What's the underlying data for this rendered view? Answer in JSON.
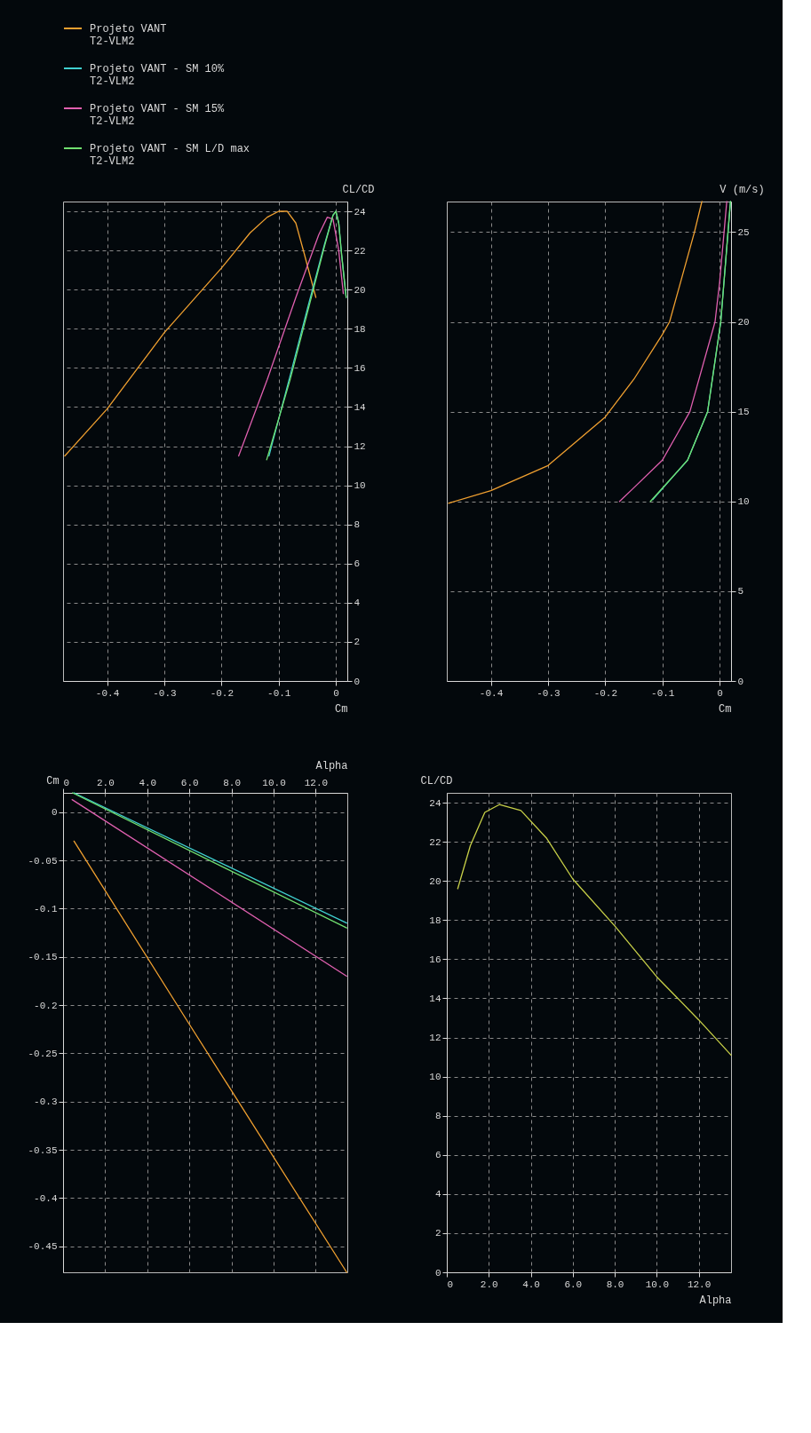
{
  "chart_data": [
    {
      "type": "line",
      "xlabel": "Cm",
      "ylabel": "CL/CD",
      "xlim": [
        -0.477,
        0.02
      ],
      "ylim": [
        0,
        24.5
      ],
      "xticks": [
        -0.4,
        -0.3,
        -0.2,
        -0.1,
        0
      ],
      "yticks": [
        0,
        2,
        4,
        6,
        8,
        10,
        12,
        14,
        16,
        18,
        20,
        22,
        24
      ],
      "grid": true,
      "legend": "top",
      "series": [
        {
          "name": "Projeto VANT\nT2-VLM2",
          "color": "#f0a030",
          "x": [
            -0.474,
            -0.4,
            -0.3,
            -0.2,
            -0.15,
            -0.12,
            -0.1,
            -0.085,
            -0.07,
            -0.055,
            -0.035
          ],
          "values": [
            11.5,
            13.9,
            17.8,
            21.1,
            22.9,
            23.7,
            24.0,
            24.0,
            23.4,
            21.8,
            19.6
          ]
        },
        {
          "name": "Projeto VANT - SM 10%\nT2-VLM2",
          "color": "#40d0d0",
          "x": [
            -0.117,
            -0.08,
            -0.05,
            -0.02,
            -0.005,
            0.0,
            0.005,
            0.01,
            0.018
          ],
          "values": [
            11.5,
            15.6,
            19.0,
            22.3,
            23.8,
            24.0,
            23.4,
            21.8,
            19.6
          ]
        },
        {
          "name": "Projeto VANT - SM 15%\nT2-VLM2",
          "color": "#e060b0",
          "x": [
            -0.17,
            -0.12,
            -0.07,
            -0.03,
            -0.015,
            -0.005,
            0.005,
            0.013
          ],
          "values": [
            11.5,
            15.4,
            19.6,
            22.8,
            23.7,
            23.6,
            22.0,
            19.8
          ]
        },
        {
          "name": "Projeto VANT - SM L/D max\nT2-VLM2",
          "color": "#70e070",
          "x": [
            -0.121,
            -0.08,
            -0.05,
            -0.02,
            -0.005,
            0.0,
            0.005,
            0.01,
            0.018
          ],
          "values": [
            11.3,
            15.4,
            18.8,
            22.2,
            23.8,
            24.0,
            23.4,
            21.8,
            19.6
          ]
        }
      ]
    },
    {
      "type": "line",
      "xlabel": "Cm",
      "ylabel": "V (m/s)",
      "xlim": [
        -0.477,
        0.02
      ],
      "ylim": [
        0,
        26.7
      ],
      "xticks": [
        -0.4,
        -0.3,
        -0.2,
        -0.1,
        0
      ],
      "yticks": [
        0,
        5,
        10,
        15,
        20,
        25
      ],
      "grid": true,
      "series": [
        {
          "color": "#f0a030",
          "x": [
            -0.474,
            -0.4,
            -0.3,
            -0.2,
            -0.15,
            -0.1,
            -0.0875,
            -0.044,
            -0.031
          ],
          "values": [
            9.9,
            10.6,
            12.0,
            14.7,
            16.8,
            19.3,
            20.0,
            25.0,
            26.7
          ]
        },
        {
          "color": "#40d0d0",
          "x": [
            -0.117,
            -0.056,
            -0.021,
            0.002,
            0.019
          ],
          "values": [
            10.1,
            12.3,
            15.0,
            20.0,
            26.7
          ]
        },
        {
          "color": "#e060b0",
          "x": [
            -0.175,
            -0.152,
            -0.1,
            -0.052,
            -0.008,
            0.0,
            0.0125
          ],
          "values": [
            10.0,
            10.7,
            12.3,
            15.0,
            20.0,
            22.2,
            26.7
          ]
        },
        {
          "color": "#70e070",
          "x": [
            -0.121,
            -0.056,
            -0.021,
            0.002,
            0.019
          ],
          "values": [
            10.0,
            12.3,
            15.0,
            20.0,
            26.7
          ]
        }
      ]
    },
    {
      "type": "line",
      "xlabel": "Alpha",
      "ylabel": "Cm",
      "xlim": [
        0,
        13.5
      ],
      "ylim": [
        -0.477,
        0.02
      ],
      "xticks": [
        0,
        {
          "value": 2,
          "label": "2.0"
        },
        {
          "value": 4,
          "label": "4.0"
        },
        {
          "value": 6,
          "label": "6.0"
        },
        {
          "value": 8,
          "label": "8.0"
        },
        {
          "value": 10,
          "label": "10.0"
        },
        {
          "value": 12,
          "label": "12.0"
        }
      ],
      "yticks": [
        0,
        -0.05,
        -0.1,
        -0.15,
        -0.2,
        -0.25,
        -0.3,
        -0.35,
        -0.4,
        -0.45
      ],
      "grid": true,
      "series": [
        {
          "color": "#f0a030",
          "x": [
            0.52,
            6.0,
            13.47
          ],
          "values": [
            -0.03,
            -0.22,
            -0.477
          ]
        },
        {
          "color": "#40d0d0",
          "x": [
            0.52,
            13.47
          ],
          "values": [
            0.02,
            -0.115
          ]
        },
        {
          "color": "#e060b0",
          "x": [
            0.43,
            13.47
          ],
          "values": [
            0.013,
            -0.17
          ]
        },
        {
          "color": "#70e070",
          "x": [
            0.45,
            13.47
          ],
          "values": [
            0.02,
            -0.12
          ]
        }
      ]
    },
    {
      "type": "line",
      "xlabel": "Alpha",
      "ylabel": "CL/CD",
      "xlim": [
        0,
        13.54
      ],
      "ylim": [
        0,
        24.5
      ],
      "xticks": [
        0,
        {
          "value": 2,
          "label": "2.0"
        },
        {
          "value": 4,
          "label": "4.0"
        },
        {
          "value": 6,
          "label": "6.0"
        },
        {
          "value": 8,
          "label": "8.0"
        },
        {
          "value": 10,
          "label": "10.0"
        },
        {
          "value": 12,
          "label": "12.0"
        }
      ],
      "yticks": [
        0,
        2,
        4,
        6,
        8,
        10,
        12,
        14,
        16,
        18,
        20,
        22,
        24
      ],
      "grid": true,
      "series": [
        {
          "color": "#c8d048",
          "x": [
            0.52,
            1.12,
            1.81,
            2.5,
            3.53,
            4.74,
            6.0,
            8.0,
            10.0,
            12.0,
            13.54
          ],
          "values": [
            19.6,
            21.8,
            23.5,
            23.9,
            23.6,
            22.2,
            20.1,
            17.7,
            15.1,
            12.9,
            11.1
          ]
        }
      ]
    }
  ]
}
